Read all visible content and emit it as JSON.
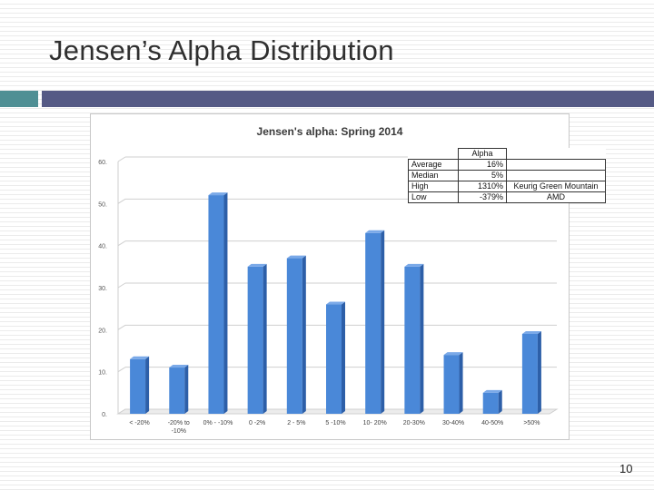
{
  "slide": {
    "title": "Jensen’s Alpha Distribution",
    "page_number": "10"
  },
  "colors": {
    "accent_teal": "#4f8f94",
    "accent_navy": "#555a85",
    "bar_fill": "#4a88d8",
    "bar_side": "#2d5fa8",
    "bar_top": "#7aa9e8"
  },
  "chart_data": {
    "type": "bar",
    "title": "Jensen's alpha: Spring 2014",
    "categories": [
      "< -20%",
      "-20% to -10%",
      "0% - -10%",
      "0 -2%",
      "2 - 5%",
      "5 -10%",
      "10- 20%",
      "20-30%",
      "30-40%",
      "40-50%",
      ">50%"
    ],
    "category_lines": [
      [
        "< -20%"
      ],
      [
        "-20% to",
        "-10%"
      ],
      [
        "0% - -10%"
      ],
      [
        "0 -2%"
      ],
      [
        "2 - 5%"
      ],
      [
        "5 -10%"
      ],
      [
        "10- 20%"
      ],
      [
        "20-30%"
      ],
      [
        "30-40%"
      ],
      [
        "40-50%"
      ],
      [
        ">50%"
      ]
    ],
    "values": [
      13,
      11,
      52,
      35,
      37,
      26,
      43,
      35,
      14,
      5,
      19
    ],
    "ylim": [
      0,
      60
    ],
    "yticks": [
      0,
      10,
      20,
      30,
      40,
      50,
      60
    ],
    "ytick_labels": [
      "0.",
      "10.",
      "20.",
      "30.",
      "40.",
      "50.",
      "60."
    ],
    "xlabel": "",
    "ylabel": "",
    "grid": true
  },
  "stats_table": {
    "header": "Alpha",
    "rows": [
      {
        "label": "Average",
        "value": "16%",
        "note": ""
      },
      {
        "label": "Median",
        "value": "5%",
        "note": ""
      },
      {
        "label": "High",
        "value": "1310%",
        "note": "Keurig Green Mountain"
      },
      {
        "label": "Low",
        "value": "-379%",
        "note": "AMD"
      }
    ]
  }
}
